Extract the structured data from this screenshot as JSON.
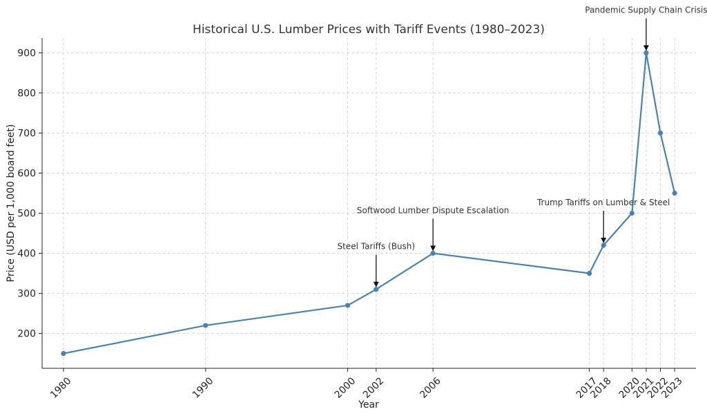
{
  "chart_data": {
    "type": "line",
    "title": "Historical U.S. Lumber Prices with Tariff Events (1980–2023)",
    "xlabel": "Year",
    "ylabel": "Price (USD per 1,000 board feet)",
    "x": [
      1980,
      1990,
      2000,
      2002,
      2006,
      2017,
      2018,
      2020,
      2021,
      2022,
      2023
    ],
    "x_tick_labels": [
      "1980",
      "1990",
      "2000",
      "2002",
      "2006",
      "2017",
      "2018",
      "2020",
      "2021",
      "2022",
      "2023"
    ],
    "y_ticks": [
      200,
      300,
      400,
      500,
      600,
      700,
      800,
      900
    ],
    "y_tick_labels": [
      "200",
      "300",
      "400",
      "500",
      "600",
      "700",
      "800",
      "900"
    ],
    "series": [
      {
        "values": [
          150,
          220,
          270,
          310,
          400,
          350,
          420,
          500,
          900,
          700,
          550
        ]
      }
    ],
    "xlim": [
      1978.5,
      2024.5
    ],
    "ylim": [
      113,
      937
    ],
    "grid": true,
    "colors": {
      "line": "#4682b4",
      "marker": "#4682b4",
      "arrow": "#111111"
    },
    "annotations": [
      {
        "text": "Steel Tariffs (Bush)",
        "x": 2002,
        "y": 310,
        "text_y": 410
      },
      {
        "text": "Softwood Lumber Dispute Escalation",
        "x": 2006,
        "y": 400,
        "text_y": 500
      },
      {
        "text": "Trump Tariffs on Lumber & Steel",
        "x": 2018,
        "y": 420,
        "text_y": 520
      },
      {
        "text": "Pandemic Supply Chain Crisis",
        "x": 2021,
        "y": 900,
        "text_y": 1000
      }
    ]
  }
}
